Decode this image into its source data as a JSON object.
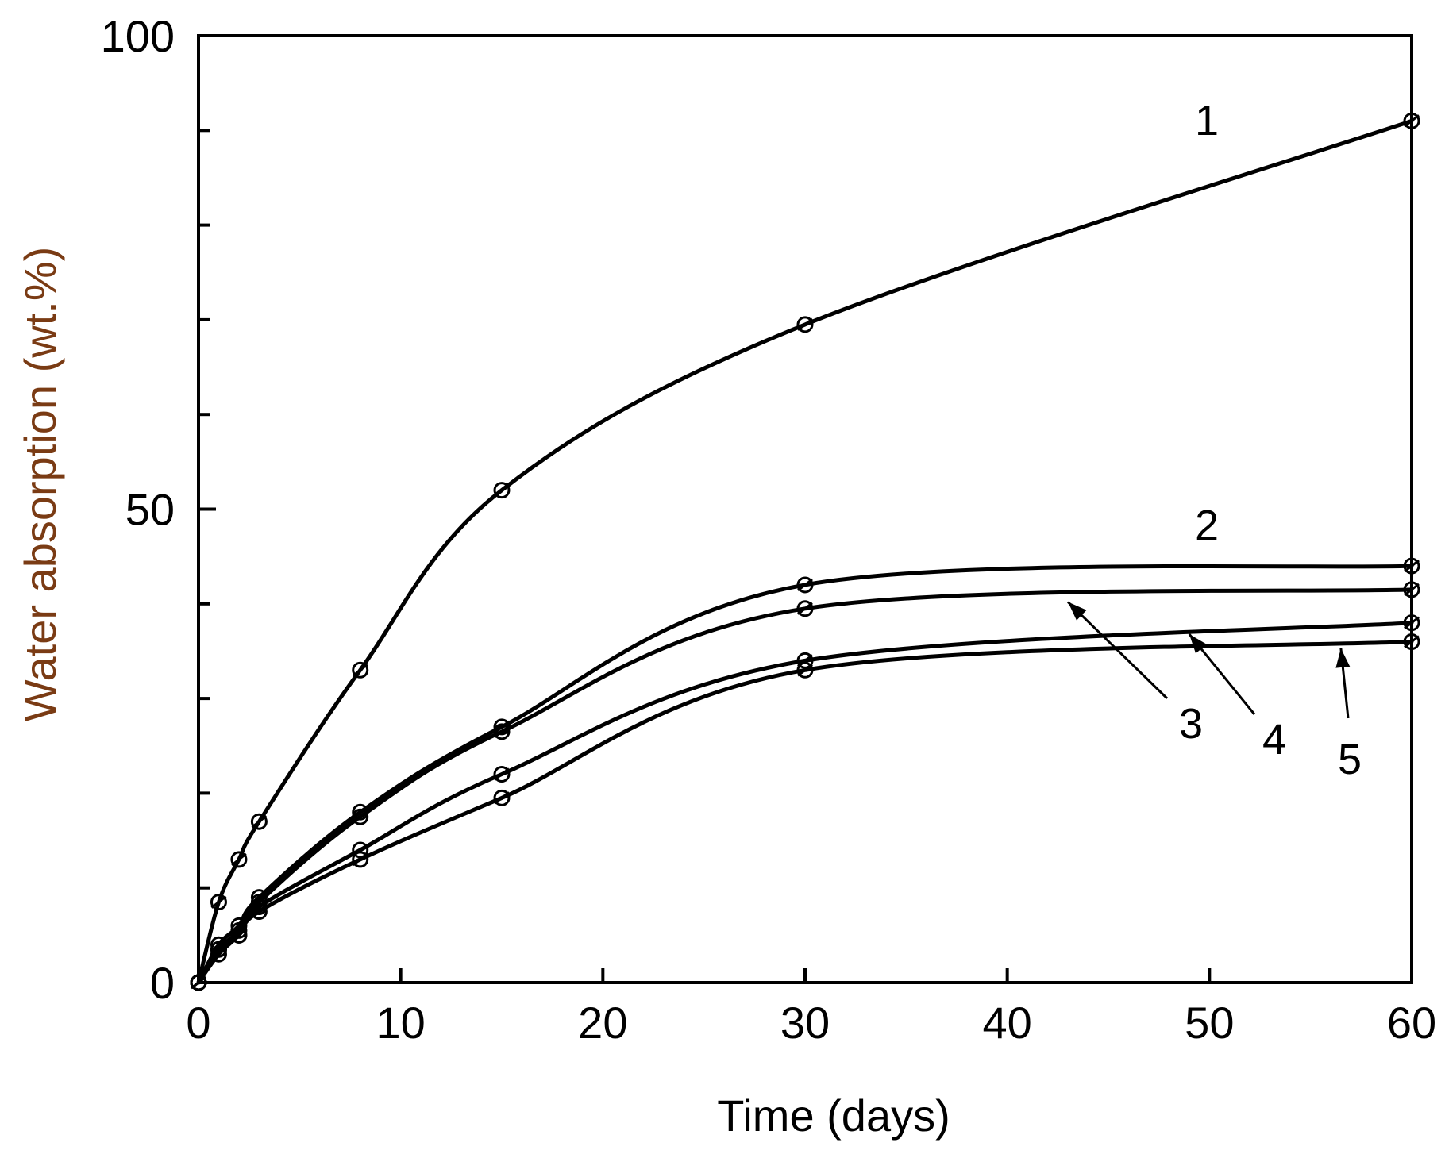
{
  "chart_data": {
    "type": "line",
    "title": "",
    "xlabel": "Time (days)",
    "ylabel": "Water absorption (wt.%)",
    "xlim": [
      0,
      60
    ],
    "ylim": [
      0,
      100
    ],
    "xticks": [
      0,
      10,
      20,
      30,
      40,
      50,
      60
    ],
    "yticks_labeled": [
      0,
      50,
      100
    ],
    "yticks_minor": [
      10,
      20,
      30,
      40,
      60,
      70,
      80,
      90
    ],
    "grid": false,
    "legend": "none",
    "series": [
      {
        "name": "1",
        "x": [
          0,
          1,
          2,
          3,
          8,
          15,
          30,
          60
        ],
        "y": [
          0,
          8.5,
          13,
          17,
          33,
          52,
          69.5,
          91
        ]
      },
      {
        "name": "2",
        "x": [
          0,
          1,
          2,
          3,
          8,
          15,
          30,
          60
        ],
        "y": [
          0,
          4,
          6,
          9,
          18,
          27,
          42,
          44
        ]
      },
      {
        "name": "3",
        "x": [
          0,
          1,
          2,
          3,
          8,
          15,
          30,
          60
        ],
        "y": [
          0,
          3.5,
          5.5,
          8.5,
          17.5,
          26.5,
          39.5,
          41.5
        ]
      },
      {
        "name": "4",
        "x": [
          0,
          1,
          2,
          3,
          8,
          15,
          30,
          60
        ],
        "y": [
          0,
          3.5,
          5,
          8,
          14,
          22,
          34,
          38
        ]
      },
      {
        "name": "5",
        "x": [
          0,
          1,
          2,
          3,
          8,
          15,
          30,
          60
        ],
        "y": [
          0,
          3,
          5,
          7.5,
          13,
          19.5,
          33,
          36
        ]
      }
    ],
    "annotations": [
      {
        "label": "1",
        "series": "1"
      },
      {
        "label": "2",
        "series": "2"
      },
      {
        "label": "3",
        "series": "3",
        "arrow_to": {
          "x": 43,
          "y": 40.2
        }
      },
      {
        "label": "4",
        "series": "4",
        "arrow_to": {
          "x": 49,
          "y": 36.8
        }
      },
      {
        "label": "5",
        "series": "5",
        "arrow_to": {
          "x": 56.5,
          "y": 35.3
        }
      }
    ]
  }
}
